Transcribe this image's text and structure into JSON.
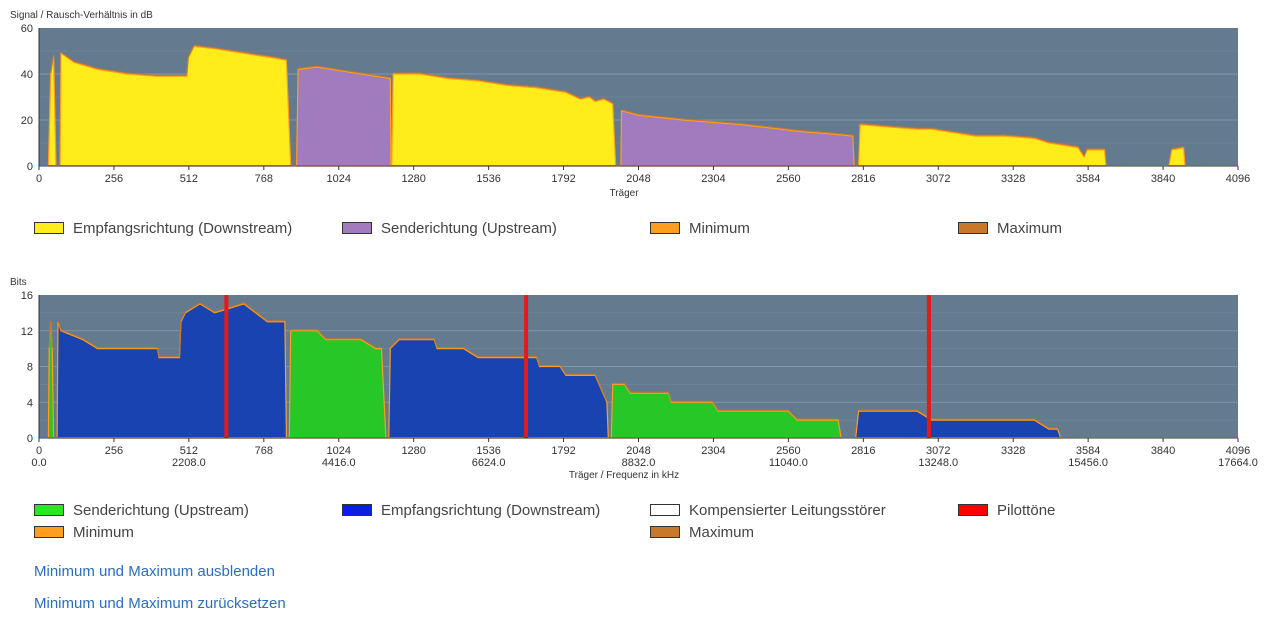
{
  "colors": {
    "plot_bg": "#637a8f",
    "grid": "#8196a8",
    "downstream_snr": "#ffec1a",
    "upstream_snr": "#a07cbf",
    "upstream_bits": "#26c726",
    "downstream_bits": "#1843b0",
    "pilot": "#e61919",
    "minimum": "#ff9d1e",
    "maximum": "#c8782a",
    "compensated": "#ffffff"
  },
  "snr_legend": [
    {
      "label": "Empfangsrichtung (Downstream)",
      "color": "#ffec1a"
    },
    {
      "label": "Senderichtung (Upstream)",
      "color": "#a07cbf"
    },
    {
      "label": "Minimum",
      "color": "#ff9d1e"
    },
    {
      "label": "Maximum",
      "color": "#c8782a"
    }
  ],
  "bits_legend": [
    {
      "label": "Senderichtung (Upstream)",
      "color": "#26e626"
    },
    {
      "label": "Empfangsrichtung (Downstream)",
      "color": "#0a1ee6"
    },
    {
      "label": "Kompensierter Leitungsstörer",
      "color": "#ffffff"
    },
    {
      "label": "Pilottöne",
      "color": "#ff0000"
    },
    {
      "label": "Minimum",
      "color": "#ff9d1e"
    },
    {
      "label": "Maximum",
      "color": "#c8782a"
    }
  ],
  "links": {
    "hide_minmax": "Minimum und Maximum ausblenden",
    "reset_minmax": "Minimum und Maximum zurücksetzen"
  },
  "chart_data": [
    {
      "type": "area",
      "ylabel": "Signal / Rausch-Verhältnis in dB",
      "xlabel": "Träger",
      "xlim": [
        0,
        4096
      ],
      "ylim": [
        0,
        60
      ],
      "yticks": [
        0,
        20,
        40,
        60
      ],
      "xticks": [
        0,
        256,
        512,
        768,
        1024,
        1280,
        1536,
        1792,
        2048,
        2304,
        2560,
        2816,
        3072,
        3328,
        3584,
        3840,
        4096
      ],
      "grid": true,
      "legend": "bottom",
      "series": [
        {
          "name": "Empfangsrichtung (Downstream)",
          "segments": [
            [
              [
                32,
                0
              ],
              [
                40,
                40
              ],
              [
                50,
                48
              ],
              [
                58,
                0
              ]
            ],
            [
              [
                72,
                0
              ],
              [
                75,
                49
              ],
              [
                120,
                45
              ],
              [
                200,
                42
              ],
              [
                300,
                40
              ],
              [
                400,
                39
              ],
              [
                505,
                39
              ],
              [
                510,
                47
              ],
              [
                530,
                52
              ],
              [
                600,
                51
              ],
              [
                700,
                49
              ],
              [
                800,
                47
              ],
              [
                845,
                46
              ],
              [
                860,
                0
              ]
            ],
            [
              [
                1205,
                0
              ],
              [
                1210,
                40
              ],
              [
                1300,
                40
              ],
              [
                1400,
                38
              ],
              [
                1500,
                37
              ],
              [
                1600,
                35
              ],
              [
                1700,
                34
              ],
              [
                1800,
                32
              ],
              [
                1850,
                29
              ],
              [
                1880,
                30
              ],
              [
                1900,
                28
              ],
              [
                1930,
                29
              ],
              [
                1960,
                27
              ],
              [
                1970,
                0
              ]
            ],
            [
              [
                2800,
                0
              ],
              [
                2805,
                18
              ],
              [
                2900,
                17
              ],
              [
                3000,
                16
              ],
              [
                3050,
                16
              ],
              [
                3100,
                15
              ],
              [
                3200,
                13
              ],
              [
                3300,
                13
              ],
              [
                3400,
                12
              ],
              [
                3450,
                10
              ],
              [
                3500,
                9
              ],
              [
                3550,
                8
              ],
              [
                3570,
                4
              ],
              [
                3580,
                7
              ],
              [
                3640,
                7
              ],
              [
                3645,
                0
              ]
            ],
            [
              [
                3860,
                0
              ],
              [
                3870,
                7
              ],
              [
                3910,
                8
              ],
              [
                3915,
                0
              ]
            ]
          ]
        },
        {
          "name": "Senderichtung (Upstream)",
          "segments": [
            [
              [
                880,
                0
              ],
              [
                885,
                42
              ],
              [
                950,
                43
              ],
              [
                1050,
                41
              ],
              [
                1150,
                39
              ],
              [
                1200,
                38
              ],
              [
                1202,
                0
              ]
            ],
            [
              [
                1988,
                0
              ],
              [
                1990,
                24
              ],
              [
                2050,
                22
              ],
              [
                2200,
                20
              ],
              [
                2400,
                18
              ],
              [
                2600,
                15
              ],
              [
                2700,
                14
              ],
              [
                2780,
                13
              ],
              [
                2785,
                0
              ]
            ]
          ]
        }
      ]
    },
    {
      "type": "area",
      "ylabel": "Bits",
      "xlabel": "Träger / Frequenz in kHz",
      "xlim": [
        0,
        4096
      ],
      "ylim": [
        0,
        16
      ],
      "yticks": [
        0,
        4,
        8,
        12,
        16
      ],
      "xticks": [
        0,
        256,
        512,
        768,
        1024,
        1280,
        1536,
        1792,
        2048,
        2304,
        2560,
        2816,
        3072,
        3328,
        3584,
        3840,
        4096
      ],
      "freq_ticks": [
        {
          "carrier": 0,
          "label": "0.0"
        },
        {
          "carrier": 512,
          "label": "2208.0"
        },
        {
          "carrier": 1024,
          "label": "4416.0"
        },
        {
          "carrier": 1536,
          "label": "6624.0"
        },
        {
          "carrier": 2048,
          "label": "8832.0"
        },
        {
          "carrier": 2560,
          "label": "11040.0"
        },
        {
          "carrier": 3072,
          "label": "13248.0"
        },
        {
          "carrier": 3584,
          "label": "15456.0"
        },
        {
          "carrier": 4096,
          "label": "17664.0"
        }
      ],
      "pilot_tones": [
        640,
        1664,
        3040
      ],
      "grid": true,
      "legend": "bottom",
      "series": [
        {
          "name": "Senderichtung (Upstream)",
          "segments": [
            [
              [
                32,
                0
              ],
              [
                35,
                10
              ],
              [
                40,
                13
              ],
              [
                45,
                10
              ],
              [
                50,
                0
              ]
            ],
            [
              [
                855,
                0
              ],
              [
                860,
                12
              ],
              [
                950,
                12
              ],
              [
                980,
                11
              ],
              [
                1100,
                11
              ],
              [
                1150,
                10
              ],
              [
                1170,
                10
              ],
              [
                1185,
                0
              ]
            ],
            [
              [
                1955,
                0
              ],
              [
                1960,
                6
              ],
              [
                2000,
                6
              ],
              [
                2020,
                5
              ],
              [
                2150,
                5
              ],
              [
                2160,
                4
              ],
              [
                2300,
                4
              ],
              [
                2320,
                3
              ],
              [
                2560,
                3
              ],
              [
                2590,
                2
              ],
              [
                2730,
                2
              ],
              [
                2740,
                0
              ]
            ]
          ]
        },
        {
          "name": "Empfangsrichtung (Downstream)",
          "segments": [
            [
              [
                62,
                0
              ],
              [
                65,
                13
              ],
              [
                75,
                12
              ],
              [
                150,
                11
              ],
              [
                200,
                10
              ],
              [
                405,
                10
              ],
              [
                410,
                9
              ],
              [
                480,
                9
              ],
              [
                485,
                13
              ],
              [
                500,
                14
              ],
              [
                550,
                15
              ],
              [
                600,
                14
              ],
              [
                700,
                15
              ],
              [
                780,
                13
              ],
              [
                840,
                13
              ],
              [
                845,
                0
              ]
            ],
            [
              [
                1195,
                0
              ],
              [
                1200,
                10
              ],
              [
                1230,
                11
              ],
              [
                1350,
                11
              ],
              [
                1360,
                10
              ],
              [
                1450,
                10
              ],
              [
                1500,
                9
              ],
              [
                1700,
                9
              ],
              [
                1710,
                8
              ],
              [
                1780,
                8
              ],
              [
                1800,
                7
              ],
              [
                1900,
                7
              ],
              [
                1940,
                4
              ],
              [
                1945,
                0
              ]
            ],
            [
              [
                2790,
                0
              ],
              [
                2800,
                3
              ],
              [
                2900,
                3
              ],
              [
                3000,
                3
              ],
              [
                3050,
                2
              ],
              [
                3200,
                2
              ],
              [
                3300,
                2
              ],
              [
                3400,
                2
              ],
              [
                3450,
                1
              ],
              [
                3480,
                1
              ],
              [
                3490,
                0
              ]
            ]
          ]
        }
      ]
    }
  ]
}
